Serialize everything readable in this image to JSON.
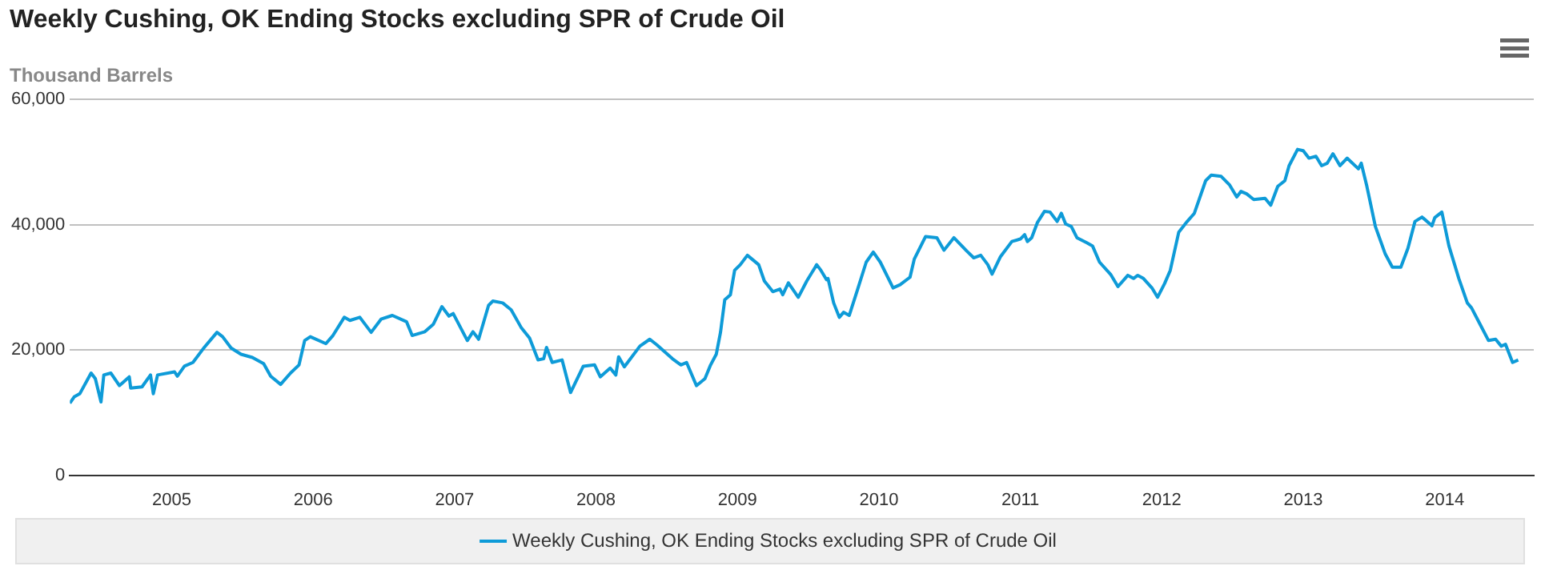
{
  "chart_data": {
    "type": "line",
    "title": "Weekly Cushing, OK Ending Stocks excluding SPR of Crude Oil",
    "ylabel": "Thousand Barrels",
    "xlim": [
      2004.28,
      2014.63
    ],
    "xticks": [
      2005,
      2006,
      2007,
      2008,
      2009,
      2010,
      2011,
      2012,
      2013,
      2014
    ],
    "ylim": [
      0,
      60000
    ],
    "yticks": [
      {
        "value": 0,
        "label": "0"
      },
      {
        "value": 20000,
        "label": "20,000"
      },
      {
        "value": 40000,
        "label": "40,000"
      },
      {
        "value": 60000,
        "label": "60,000"
      }
    ],
    "grid": "y",
    "legend": "bottom",
    "marker": "none",
    "line_style": "solid",
    "series": [
      {
        "name": "Weekly Cushing, OK Ending Stocks excluding SPR of Crude Oil",
        "color": "#0e9bd8",
        "x": [
          2004.28,
          2004.31,
          2004.35,
          2004.43,
          2004.46,
          2004.5,
          2004.52,
          2004.57,
          2004.63,
          2004.7,
          2004.71,
          2004.79,
          2004.85,
          2004.87,
          2004.9,
          2005.02,
          2005.04,
          2005.09,
          2005.15,
          2005.23,
          2005.32,
          2005.36,
          2005.42,
          2005.49,
          2005.57,
          2005.65,
          2005.7,
          2005.77,
          2005.84,
          2005.9,
          2005.94,
          2005.98,
          2006.09,
          2006.14,
          2006.22,
          2006.26,
          2006.33,
          2006.41,
          2006.48,
          2006.56,
          2006.66,
          2006.7,
          2006.79,
          2006.85,
          2006.91,
          2006.96,
          2006.99,
          2007.09,
          2007.13,
          2007.17,
          2007.24,
          2007.27,
          2007.34,
          2007.4,
          2007.47,
          2007.53,
          2007.59,
          2007.63,
          2007.65,
          2007.69,
          2007.76,
          2007.82,
          2007.91,
          2007.99,
          2008.03,
          2008.1,
          2008.14,
          2008.16,
          2008.2,
          2008.31,
          2008.38,
          2008.43,
          2008.54,
          2008.6,
          2008.64,
          2008.71,
          2008.77,
          2008.81,
          2008.85,
          2008.88,
          2008.91,
          2008.95,
          2008.98,
          2009.02,
          2009.07,
          2009.15,
          2009.19,
          2009.25,
          2009.3,
          2009.32,
          2009.36,
          2009.43,
          2009.49,
          2009.56,
          2009.59,
          2009.63,
          2009.64,
          2009.68,
          2009.72,
          2009.75,
          2009.79,
          2009.85,
          2009.91,
          2009.96,
          2010.01,
          2010.1,
          2010.15,
          2010.22,
          2010.25,
          2010.33,
          2010.41,
          2010.46,
          2010.53,
          2010.62,
          2010.67,
          2010.72,
          2010.77,
          2010.8,
          2010.86,
          2010.94,
          2011.0,
          2011.03,
          2011.05,
          2011.08,
          2011.12,
          2011.17,
          2011.21,
          2011.26,
          2011.29,
          2011.32,
          2011.36,
          2011.4,
          2011.47,
          2011.51,
          2011.56,
          2011.64,
          2011.69,
          2011.76,
          2011.8,
          2011.83,
          2011.87,
          2011.93,
          2011.97,
          2012.02,
          2012.06,
          2012.12,
          2012.18,
          2012.23,
          2012.31,
          2012.35,
          2012.42,
          2012.48,
          2012.53,
          2012.56,
          2012.6,
          2012.65,
          2012.73,
          2012.77,
          2012.82,
          2012.87,
          2012.9,
          2012.96,
          2013.0,
          2013.04,
          2013.09,
          2013.13,
          2013.17,
          2013.21,
          2013.26,
          2013.31,
          2013.39,
          2013.41,
          2013.45,
          2013.51,
          2013.58,
          2013.63,
          2013.69,
          2013.74,
          2013.79,
          2013.84,
          2013.91,
          2013.93,
          2013.98,
          2014.03,
          2014.1,
          2014.16,
          2014.19,
          2014.25,
          2014.31,
          2014.36,
          2014.4,
          2014.43,
          2014.48,
          2014.52
        ],
        "values": [
          11500,
          12500,
          13000,
          16300,
          15400,
          11700,
          16000,
          16300,
          14300,
          15700,
          13900,
          14100,
          16000,
          13000,
          16000,
          16500,
          15800,
          17400,
          18000,
          20400,
          22800,
          22100,
          20300,
          19300,
          18800,
          17800,
          15800,
          14500,
          16300,
          17600,
          21500,
          22100,
          21000,
          22300,
          25200,
          24700,
          25200,
          22800,
          24900,
          25500,
          24500,
          22300,
          22900,
          24100,
          26900,
          25400,
          25800,
          21500,
          22900,
          21700,
          27100,
          27800,
          27500,
          26400,
          23600,
          21900,
          18400,
          18600,
          20400,
          18000,
          18400,
          13200,
          17400,
          17600,
          15700,
          17100,
          16000,
          18900,
          17300,
          20600,
          21700,
          20800,
          18600,
          17600,
          18000,
          14300,
          15400,
          17600,
          19300,
          22800,
          28000,
          28800,
          32700,
          33600,
          35100,
          33600,
          31000,
          29300,
          29700,
          28800,
          30700,
          28400,
          31000,
          33600,
          32700,
          31200,
          31400,
          27500,
          25200,
          26000,
          25500,
          29700,
          34000,
          35600,
          34000,
          29900,
          30400,
          31600,
          34500,
          38100,
          37900,
          35900,
          37900,
          35800,
          34700,
          35100,
          33600,
          32100,
          34900,
          37300,
          37700,
          38400,
          37300,
          37900,
          40300,
          42100,
          42000,
          40500,
          41800,
          40100,
          39700,
          37900,
          37100,
          36600,
          34000,
          32000,
          30100,
          31900,
          31400,
          31900,
          31400,
          29900,
          28400,
          30600,
          32700,
          38800,
          40500,
          41800,
          47000,
          47900,
          47700,
          46300,
          44400,
          45300,
          44900,
          44000,
          44200,
          43100,
          46100,
          47000,
          49400,
          52000,
          51800,
          50600,
          50900,
          49400,
          49800,
          51300,
          49400,
          50600,
          48900,
          49800,
          46100,
          39700,
          35300,
          33200,
          33200,
          36200,
          40500,
          41200,
          39800,
          41100,
          42000,
          36600,
          31400,
          27500,
          26700,
          24100,
          21500,
          21700,
          20600,
          20900,
          18000,
          18400
        ]
      }
    ]
  }
}
